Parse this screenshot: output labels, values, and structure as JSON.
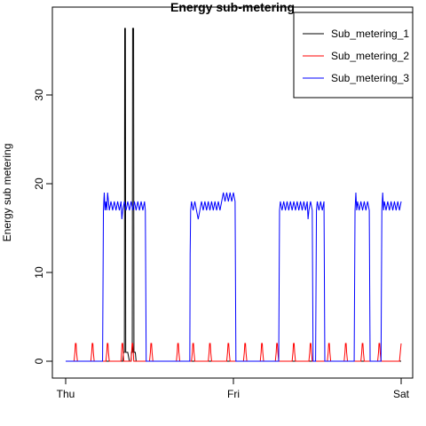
{
  "chart_data": {
    "type": "line",
    "title": "Energy sub-metering",
    "xlabel": "",
    "ylabel": "Energy sub metering",
    "x_ticks": [
      "Thu",
      "Fri",
      "Sat"
    ],
    "x_unit": "days",
    "xlim": [
      0,
      2
    ],
    "y_ticks": [
      0,
      10,
      20,
      30
    ],
    "ylim": [
      -1.9,
      39.9
    ],
    "legend_position": "top-right",
    "series": [
      {
        "name": "Sub_metering_1",
        "color": "#000000",
        "points": [
          [
            0,
            0
          ],
          [
            0.34,
            0
          ],
          [
            0.345,
            1
          ],
          [
            0.35,
            1
          ],
          [
            0.352,
            37.5
          ],
          [
            0.356,
            37.5
          ],
          [
            0.358,
            1
          ],
          [
            0.37,
            1
          ],
          [
            0.38,
            0
          ],
          [
            0.39,
            0
          ],
          [
            0.392,
            1
          ],
          [
            0.397,
            1
          ],
          [
            0.399,
            37.5
          ],
          [
            0.405,
            37.5
          ],
          [
            0.407,
            1
          ],
          [
            0.415,
            1
          ],
          [
            0.42,
            0
          ],
          [
            2,
            0
          ]
        ]
      },
      {
        "name": "Sub_metering_2",
        "color": "#ff0000",
        "points": [
          [
            0,
            0
          ],
          [
            0.05,
            0
          ],
          [
            0.055,
            1
          ],
          [
            0.058,
            2
          ],
          [
            0.062,
            2
          ],
          [
            0.065,
            1
          ],
          [
            0.07,
            0
          ],
          [
            0.15,
            0
          ],
          [
            0.155,
            1
          ],
          [
            0.158,
            2
          ],
          [
            0.162,
            2
          ],
          [
            0.165,
            1
          ],
          [
            0.17,
            0
          ],
          [
            0.24,
            0
          ],
          [
            0.245,
            1
          ],
          [
            0.248,
            2
          ],
          [
            0.252,
            2
          ],
          [
            0.255,
            1
          ],
          [
            0.26,
            0
          ],
          [
            0.33,
            0
          ],
          [
            0.333,
            1
          ],
          [
            0.336,
            2
          ],
          [
            0.34,
            2
          ],
          [
            0.343,
            1
          ],
          [
            0.346,
            0
          ],
          [
            0.39,
            0
          ],
          [
            0.393,
            1
          ],
          [
            0.396,
            2
          ],
          [
            0.4,
            2
          ],
          [
            0.403,
            1
          ],
          [
            0.406,
            0
          ],
          [
            0.5,
            0
          ],
          [
            0.505,
            1
          ],
          [
            0.508,
            2
          ],
          [
            0.512,
            2
          ],
          [
            0.515,
            1
          ],
          [
            0.52,
            0
          ],
          [
            0.66,
            0
          ],
          [
            0.665,
            1
          ],
          [
            0.668,
            2
          ],
          [
            0.672,
            2
          ],
          [
            0.675,
            1
          ],
          [
            0.68,
            0
          ],
          [
            0.75,
            0
          ],
          [
            0.755,
            1
          ],
          [
            0.758,
            2
          ],
          [
            0.762,
            2
          ],
          [
            0.765,
            1
          ],
          [
            0.77,
            0
          ],
          [
            0.85,
            0
          ],
          [
            0.855,
            1
          ],
          [
            0.858,
            2
          ],
          [
            0.862,
            2
          ],
          [
            0.865,
            1
          ],
          [
            0.87,
            0
          ],
          [
            0.96,
            0
          ],
          [
            0.965,
            1
          ],
          [
            0.968,
            2
          ],
          [
            0.972,
            2
          ],
          [
            0.975,
            1
          ],
          [
            0.98,
            0
          ],
          [
            1.06,
            0
          ],
          [
            1.065,
            1
          ],
          [
            1.068,
            2
          ],
          [
            1.072,
            2
          ],
          [
            1.075,
            1
          ],
          [
            1.08,
            0
          ],
          [
            1.16,
            0
          ],
          [
            1.165,
            1
          ],
          [
            1.168,
            2
          ],
          [
            1.172,
            2
          ],
          [
            1.175,
            1
          ],
          [
            1.18,
            0
          ],
          [
            1.25,
            0
          ],
          [
            1.255,
            1
          ],
          [
            1.258,
            2
          ],
          [
            1.262,
            2
          ],
          [
            1.265,
            1
          ],
          [
            1.27,
            0
          ],
          [
            1.35,
            0
          ],
          [
            1.355,
            1
          ],
          [
            1.358,
            2
          ],
          [
            1.362,
            2
          ],
          [
            1.365,
            1
          ],
          [
            1.37,
            0
          ],
          [
            1.45,
            0
          ],
          [
            1.455,
            1
          ],
          [
            1.458,
            2
          ],
          [
            1.462,
            2
          ],
          [
            1.465,
            1
          ],
          [
            1.47,
            0
          ],
          [
            1.56,
            0
          ],
          [
            1.565,
            1
          ],
          [
            1.568,
            2
          ],
          [
            1.572,
            2
          ],
          [
            1.575,
            1
          ],
          [
            1.58,
            0
          ],
          [
            1.66,
            0
          ],
          [
            1.665,
            1
          ],
          [
            1.668,
            2
          ],
          [
            1.672,
            2
          ],
          [
            1.675,
            1
          ],
          [
            1.68,
            0
          ],
          [
            1.76,
            0
          ],
          [
            1.765,
            1
          ],
          [
            1.768,
            2
          ],
          [
            1.772,
            2
          ],
          [
            1.775,
            1
          ],
          [
            1.78,
            0
          ],
          [
            1.86,
            0
          ],
          [
            1.865,
            1
          ],
          [
            1.868,
            2
          ],
          [
            1.872,
            2
          ],
          [
            1.875,
            1
          ],
          [
            1.88,
            0
          ],
          [
            1.99,
            0
          ],
          [
            1.995,
            1
          ],
          [
            2,
            2
          ]
        ]
      },
      {
        "name": "Sub_metering_3",
        "color": "#0000ff",
        "points": [
          [
            0,
            0
          ],
          [
            0.22,
            0
          ],
          [
            0.225,
            17
          ],
          [
            0.23,
            19
          ],
          [
            0.235,
            17
          ],
          [
            0.24,
            18
          ],
          [
            0.245,
            17
          ],
          [
            0.25,
            19
          ],
          [
            0.255,
            18
          ],
          [
            0.26,
            17
          ],
          [
            0.27,
            18
          ],
          [
            0.28,
            17
          ],
          [
            0.29,
            18
          ],
          [
            0.3,
            17
          ],
          [
            0.31,
            18
          ],
          [
            0.32,
            17
          ],
          [
            0.33,
            18
          ],
          [
            0.335,
            16
          ],
          [
            0.34,
            17
          ],
          [
            0.35,
            18
          ],
          [
            0.36,
            17
          ],
          [
            0.37,
            18
          ],
          [
            0.38,
            17
          ],
          [
            0.39,
            18
          ],
          [
            0.4,
            17
          ],
          [
            0.41,
            18
          ],
          [
            0.42,
            17
          ],
          [
            0.43,
            18
          ],
          [
            0.44,
            17
          ],
          [
            0.45,
            18
          ],
          [
            0.46,
            17
          ],
          [
            0.47,
            18
          ],
          [
            0.475,
            17
          ],
          [
            0.48,
            0
          ],
          [
            0.74,
            0
          ],
          [
            0.742,
            12
          ],
          [
            0.745,
            17
          ],
          [
            0.75,
            18
          ],
          [
            0.76,
            17
          ],
          [
            0.77,
            18
          ],
          [
            0.78,
            17
          ],
          [
            0.79,
            16
          ],
          [
            0.8,
            17
          ],
          [
            0.81,
            18
          ],
          [
            0.82,
            17
          ],
          [
            0.83,
            18
          ],
          [
            0.84,
            17
          ],
          [
            0.85,
            18
          ],
          [
            0.86,
            17
          ],
          [
            0.87,
            18
          ],
          [
            0.88,
            17
          ],
          [
            0.89,
            18
          ],
          [
            0.9,
            17
          ],
          [
            0.91,
            18
          ],
          [
            0.92,
            17
          ],
          [
            0.93,
            18
          ],
          [
            0.94,
            19
          ],
          [
            0.95,
            18
          ],
          [
            0.96,
            19
          ],
          [
            0.97,
            18
          ],
          [
            0.98,
            19
          ],
          [
            0.99,
            18
          ],
          [
            1.0,
            19
          ],
          [
            1.01,
            18
          ],
          [
            1.015,
            0
          ],
          [
            1.27,
            0
          ],
          [
            1.275,
            17
          ],
          [
            1.28,
            18
          ],
          [
            1.29,
            17
          ],
          [
            1.3,
            18
          ],
          [
            1.31,
            17
          ],
          [
            1.32,
            18
          ],
          [
            1.33,
            17
          ],
          [
            1.34,
            18
          ],
          [
            1.35,
            17
          ],
          [
            1.36,
            18
          ],
          [
            1.37,
            17
          ],
          [
            1.38,
            18
          ],
          [
            1.39,
            17
          ],
          [
            1.4,
            18
          ],
          [
            1.41,
            17
          ],
          [
            1.42,
            18
          ],
          [
            1.43,
            17
          ],
          [
            1.44,
            18
          ],
          [
            1.445,
            16
          ],
          [
            1.45,
            17
          ],
          [
            1.46,
            18
          ],
          [
            1.47,
            17
          ],
          [
            1.475,
            0
          ],
          [
            1.49,
            0
          ],
          [
            1.495,
            17
          ],
          [
            1.5,
            18
          ],
          [
            1.51,
            17
          ],
          [
            1.52,
            18
          ],
          [
            1.53,
            17
          ],
          [
            1.54,
            18
          ],
          [
            1.545,
            0
          ],
          [
            1.72,
            0
          ],
          [
            1.725,
            17
          ],
          [
            1.73,
            19
          ],
          [
            1.735,
            17
          ],
          [
            1.74,
            18
          ],
          [
            1.75,
            17
          ],
          [
            1.76,
            18
          ],
          [
            1.77,
            17
          ],
          [
            1.78,
            18
          ],
          [
            1.79,
            17
          ],
          [
            1.8,
            18
          ],
          [
            1.81,
            17
          ],
          [
            1.815,
            0
          ],
          [
            1.88,
            0
          ],
          [
            1.885,
            17
          ],
          [
            1.89,
            19
          ],
          [
            1.895,
            17
          ],
          [
            1.9,
            18
          ],
          [
            1.91,
            17
          ],
          [
            1.92,
            18
          ],
          [
            1.93,
            17
          ],
          [
            1.94,
            18
          ],
          [
            1.95,
            17
          ],
          [
            1.96,
            18
          ],
          [
            1.97,
            17
          ],
          [
            1.98,
            18
          ],
          [
            1.99,
            17
          ],
          [
            2,
            18
          ]
        ]
      }
    ]
  }
}
